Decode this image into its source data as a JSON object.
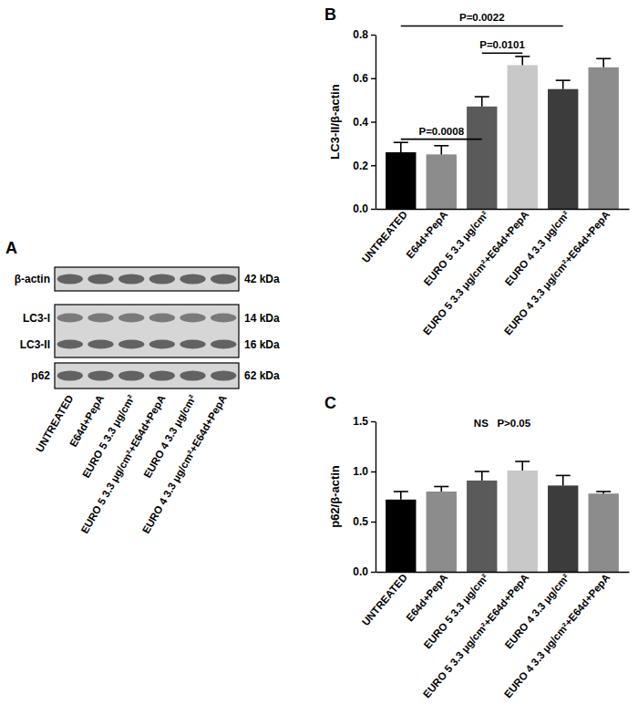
{
  "chart_data": [
    {
      "type": "bar",
      "title": "B",
      "y_label": "LC3-II/β-actin",
      "categories": [
        "UNTREATED",
        "E64d+PepA",
        "EURO 5 3.3 μg/cm²",
        "EURO 5 3.3 μg/cm²+E64d+PepA",
        "EURO 4 3.3 μg/cm²",
        "EURO 4 3.3 μg/cm²+E64d+PepA"
      ],
      "values": [
        0.26,
        0.25,
        0.47,
        0.66,
        0.55,
        0.65
      ],
      "errors": [
        0.045,
        0.04,
        0.045,
        0.04,
        0.04,
        0.04
      ],
      "colors": [
        "#000000",
        "#8c8c8c",
        "#5a5a5a",
        "#c8c8c8",
        "#3c3c3c",
        "#8c8c8c"
      ],
      "ylim": [
        0,
        0.8
      ],
      "yticks": [
        {
          "value": 0,
          "label": "0.0"
        },
        0.2,
        0.4,
        0.6,
        0.8
      ],
      "annotations": [
        {
          "text": "P=0.0022",
          "from": "UNTREATED",
          "to": "EURO 4 3.3 μg/cm²",
          "y": 0.84
        },
        {
          "text": "P=0.0101",
          "from": "EURO 5 3.3 μg/cm²",
          "to": "EURO 5 3.3 μg/cm²+E64d+PepA",
          "y": 0.715
        },
        {
          "text": "P=0.0008",
          "from": "UNTREATED",
          "to": "EURO 5 3.3 μg/cm²",
          "y": 0.32
        }
      ]
    },
    {
      "type": "bar",
      "title": "C",
      "y_label": "p62/β-actin",
      "categories": [
        "UNTREATED",
        "E64d+PepA",
        "EURO 5 3.3 μg/cm²",
        "EURO 5 3.3 μg/cm²+E64d+PepA",
        "EURO 4 3.3 μg/cm²",
        "EURO 4 3.3 μg/cm²+E64d+PepA"
      ],
      "values": [
        0.72,
        0.8,
        0.91,
        1.01,
        0.86,
        0.78
      ],
      "errors": [
        0.08,
        0.05,
        0.09,
        0.09,
        0.1,
        0.02
      ],
      "colors": [
        "#000000",
        "#8c8c8c",
        "#5a5a5a",
        "#c8c8c8",
        "#3c3c3c",
        "#8c8c8c"
      ],
      "ylim": [
        0,
        1.5
      ],
      "yticks": [
        {
          "value": 0,
          "label": "0.0"
        },
        0.5,
        {
          "value": 1,
          "label": "1.0"
        },
        1.5
      ],
      "annotations": [
        {
          "text": "NS   P>0.05",
          "y": 1.45
        }
      ]
    }
  ],
  "blot": {
    "title": "A",
    "rows": [
      {
        "labels": [
          "β-actin"
        ],
        "sizes": [
          "42 kDa"
        ]
      },
      {
        "labels": [
          "LC3-I",
          "LC3-II"
        ],
        "sizes": [
          "14 kDa",
          "16 kDa"
        ]
      },
      {
        "labels": [
          "p62"
        ],
        "sizes": [
          "62 kDa"
        ]
      }
    ],
    "lanes": [
      "UNTREATED",
      "E64d+PepA",
      "EURO 5 3.3 μg/cm²",
      "EURO 5 3.3 μg/cm²+E64d+PepA",
      "EURO 4 3.3 μg/cm²",
      "EURO 4 3.3 μg/cm²+E64d+PepA"
    ]
  }
}
